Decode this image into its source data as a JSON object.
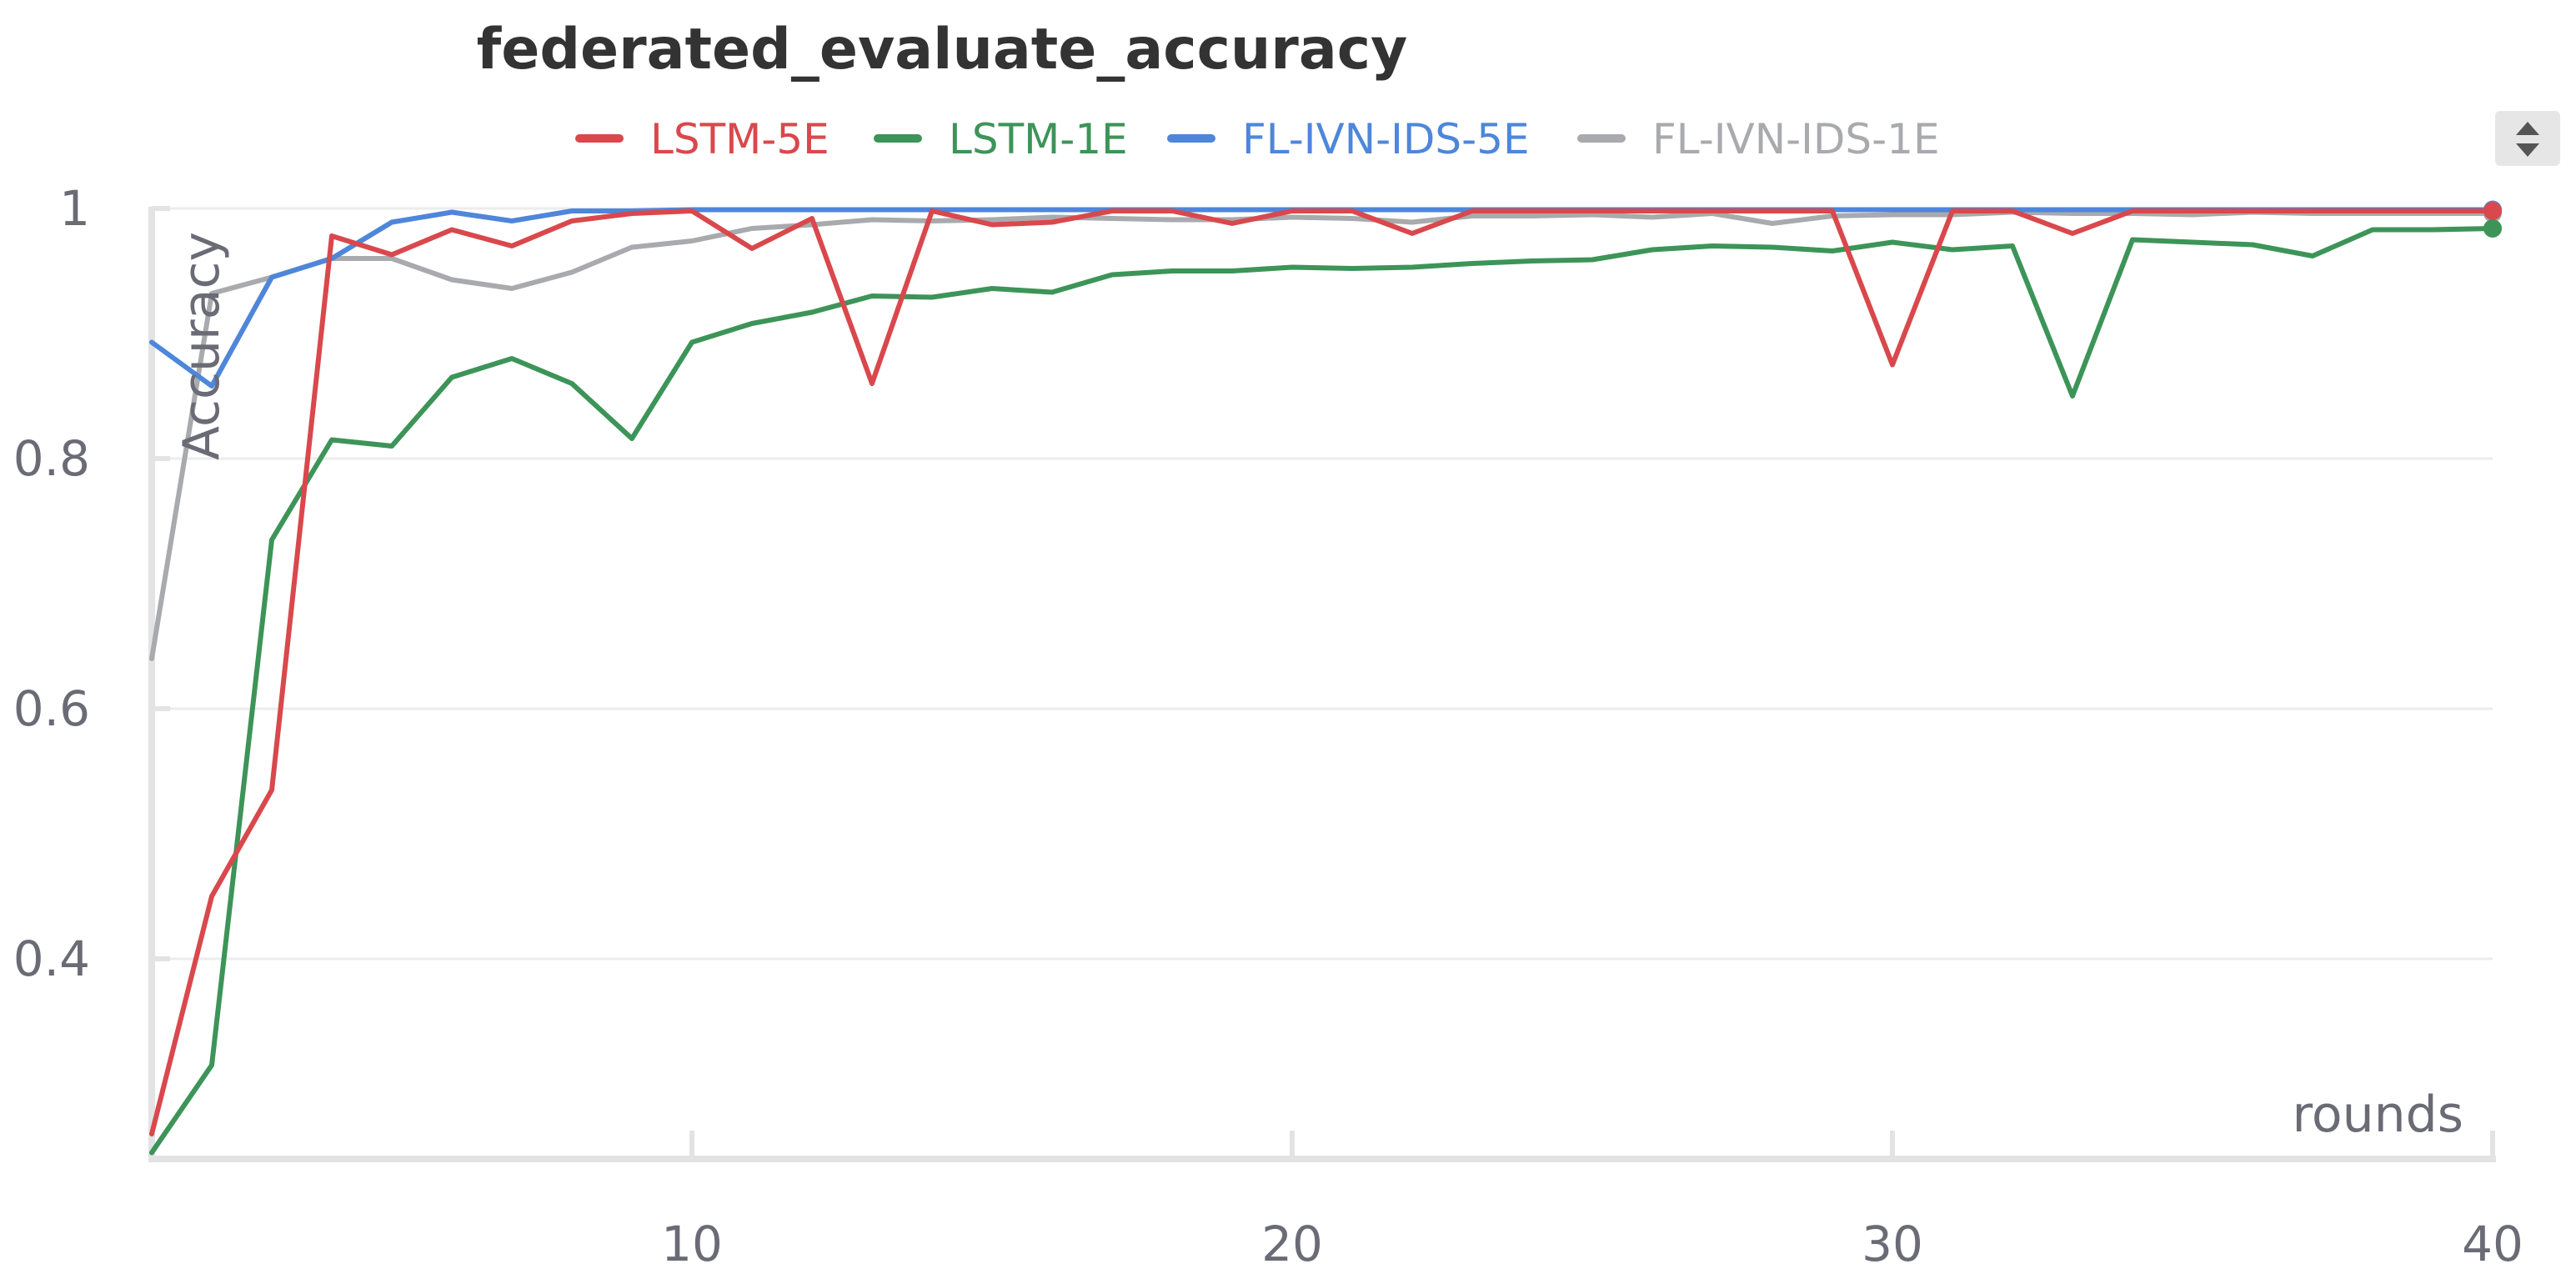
{
  "chart_data": {
    "type": "line",
    "title": "federated_evaluate_accuracy",
    "xlabel": "rounds",
    "ylabel": "Accuracy",
    "xlim": [
      1,
      40
    ],
    "ylim": [
      0.25,
      1.0
    ],
    "x_ticks": [
      10,
      20,
      30,
      40
    ],
    "y_ticks": [
      0.4,
      0.6,
      0.8,
      1.0
    ],
    "y_tick_labels": [
      "0.4",
      "0.6",
      "0.8",
      "1"
    ],
    "grid": true,
    "legend_position": "top",
    "x": [
      1,
      2,
      3,
      4,
      5,
      6,
      7,
      8,
      9,
      10,
      11,
      12,
      13,
      14,
      15,
      16,
      17,
      18,
      19,
      20,
      21,
      22,
      23,
      24,
      25,
      26,
      27,
      28,
      29,
      30,
      31,
      32,
      33,
      34,
      35,
      36,
      37,
      38,
      39,
      40
    ],
    "series": [
      {
        "name": "LSTM-5E",
        "color": "#d9484c",
        "values": [
          0.26,
          0.45,
          0.535,
          0.978,
          0.963,
          0.983,
          0.97,
          0.99,
          0.996,
          0.998,
          0.968,
          0.992,
          0.86,
          0.998,
          0.987,
          0.989,
          0.998,
          0.998,
          0.988,
          0.998,
          0.998,
          0.98,
          0.998,
          0.998,
          0.998,
          0.998,
          0.998,
          0.998,
          0.998,
          0.875,
          0.998,
          0.998,
          0.98,
          0.998,
          0.998,
          0.998,
          0.998,
          0.998,
          0.998,
          0.998
        ]
      },
      {
        "name": "LSTM-1E",
        "color": "#3d9458",
        "values": [
          0.245,
          0.315,
          0.735,
          0.815,
          0.81,
          0.865,
          0.88,
          0.86,
          0.816,
          0.893,
          0.908,
          0.917,
          0.93,
          0.929,
          0.936,
          0.933,
          0.947,
          0.95,
          0.95,
          0.953,
          0.952,
          0.953,
          0.956,
          0.958,
          0.959,
          0.967,
          0.97,
          0.969,
          0.966,
          0.973,
          0.967,
          0.97,
          0.85,
          0.975,
          0.973,
          0.971,
          0.962,
          0.983,
          0.983,
          0.984
        ]
      },
      {
        "name": "FL-IVN-IDS-5E",
        "color": "#4e86da",
        "values": [
          0.893,
          0.858,
          0.945,
          0.96,
          0.989,
          0.997,
          0.99,
          0.998,
          0.998,
          0.999,
          0.999,
          0.999,
          0.999,
          0.999,
          0.999,
          0.999,
          0.999,
          0.999,
          0.999,
          0.999,
          0.999,
          0.999,
          0.999,
          0.999,
          0.999,
          0.999,
          0.999,
          0.999,
          0.999,
          0.999,
          0.999,
          0.999,
          0.999,
          0.999,
          0.999,
          0.999,
          0.999,
          0.999,
          0.999,
          0.999
        ]
      },
      {
        "name": "FL-IVN-IDS-1E",
        "color": "#a8aaad",
        "values": [
          0.64,
          0.932,
          0.945,
          0.96,
          0.96,
          0.943,
          0.936,
          0.949,
          0.969,
          0.974,
          0.984,
          0.987,
          0.991,
          0.99,
          0.991,
          0.993,
          0.992,
          0.991,
          0.991,
          0.993,
          0.992,
          0.989,
          0.994,
          0.994,
          0.995,
          0.993,
          0.996,
          0.988,
          0.994,
          0.995,
          0.995,
          0.997,
          0.996,
          0.996,
          0.995,
          0.997,
          0.996,
          0.996,
          0.996,
          0.996
        ]
      }
    ]
  }
}
